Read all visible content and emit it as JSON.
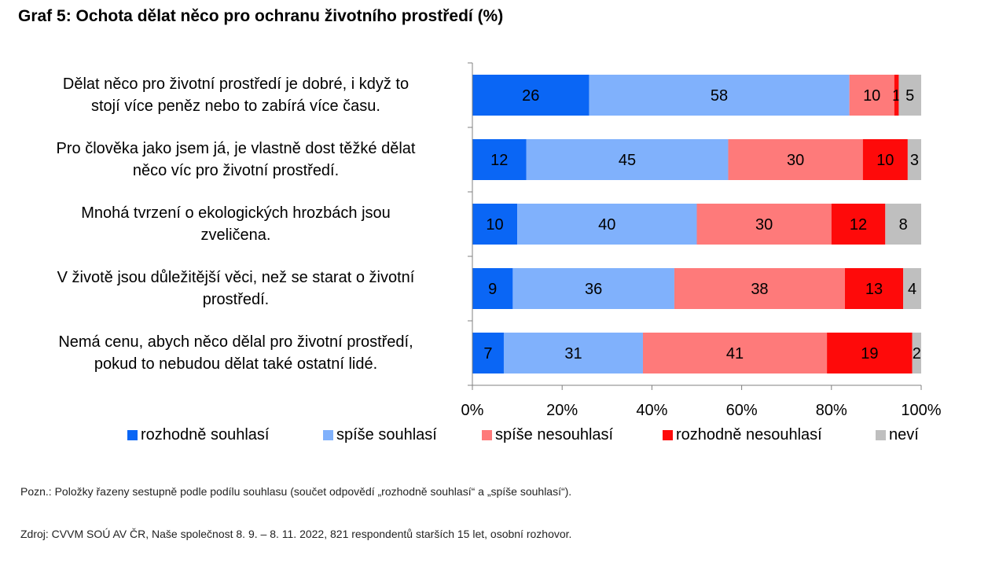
{
  "chart_data": {
    "type": "bar",
    "orientation": "horizontal",
    "stacked": true,
    "title": "Graf 5: Ochota dělat něco pro ochranu životního prostředí (%)",
    "categories": [
      "Dělat něco pro životní prostředí je dobré, i když to stojí více peněz nebo to zabírá více času.",
      "Pro člověka jako jsem já, je vlastně dost těžké dělat něco víc pro životní prostředí.",
      "Mnohá tvrzení o ekologických hrozbách jsou zveličena.",
      "V životě jsou důležitější věci, než se starat o životní prostředí.",
      "Nemá cenu, abych něco dělal pro životní prostředí, pokud to nebudou dělat také ostatní lidé."
    ],
    "category_lines": [
      [
        "Dělat něco pro životní prostředí je dobré, i když to",
        "stojí více peněz nebo to zabírá více času."
      ],
      [
        "Pro člověka jako jsem já, je vlastně dost těžké dělat",
        "něco víc pro životní prostředí."
      ],
      [
        "Mnohá tvrzení o ekologických hrozbách jsou",
        "zveličena."
      ],
      [
        "V životě jsou důležitější věci, než se starat o životní",
        "prostředí."
      ],
      [
        "Nemá cenu, abych něco dělal pro životní prostředí,",
        "pokud to nebudou dělat také ostatní lidé."
      ]
    ],
    "series": [
      {
        "name": "rozhodně souhlasí",
        "color": "#0a66f5",
        "values": [
          26,
          12,
          10,
          9,
          7
        ]
      },
      {
        "name": "spíše souhlasí",
        "color": "#80b1fc",
        "values": [
          58,
          45,
          40,
          36,
          31
        ]
      },
      {
        "name": "spíše nesouhlasí",
        "color": "#fe7a7a",
        "values": [
          10,
          30,
          30,
          38,
          41
        ]
      },
      {
        "name": "rozhodně nesouhlasí",
        "color": "#fe0a0a",
        "values": [
          1,
          10,
          12,
          13,
          19
        ]
      },
      {
        "name": "neví",
        "color": "#bfbfbf",
        "values": [
          5,
          3,
          8,
          4,
          2
        ]
      }
    ],
    "xlim": [
      0,
      100
    ],
    "x_ticks": [
      "0%",
      "20%",
      "40%",
      "60%",
      "80%",
      "100%"
    ],
    "x_tick_values": [
      0,
      20,
      40,
      60,
      80,
      100
    ],
    "legend_position": "bottom"
  },
  "footnotes": {
    "note": "Pozn.: Položky řazeny sestupně podle podílu souhlasu (součet odpovědí „rozhodně souhlasí“ a „spíše souhlasí“).",
    "source": "Zdroj: CVVM SOÚ AV ČR, Naše společnost 8. 9. – 8. 11. 2022, 821 respondentů starších 15 let, osobní rozhovor."
  }
}
